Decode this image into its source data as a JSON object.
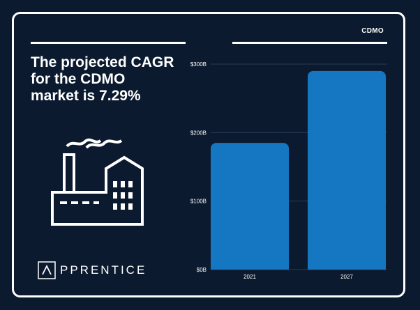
{
  "headline": "The projected CAGR for the CDMO market is 7.29%",
  "brand": {
    "name": "PPRENTICE",
    "logo_icon": "caret-up-icon"
  },
  "colors": {
    "background": "#0b1a2e",
    "bar": "#1577c2",
    "text": "#ffffff"
  },
  "chart_data": {
    "type": "bar",
    "title": "CDMO",
    "categories": [
      "2021",
      "2027"
    ],
    "values": [
      185,
      290
    ],
    "ylim": [
      0,
      300
    ],
    "yticks": [
      0,
      100,
      200,
      300
    ],
    "ytick_labels": [
      "$0B",
      "$100B",
      "$200B",
      "$300B"
    ],
    "grid": true,
    "xlabel": "",
    "ylabel": ""
  }
}
